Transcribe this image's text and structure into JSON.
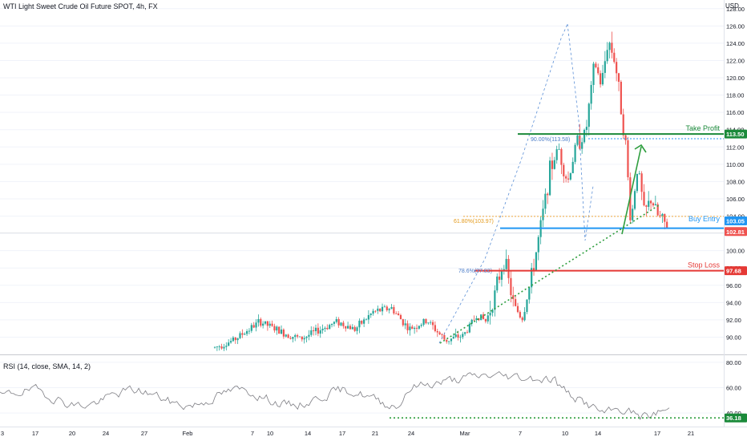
{
  "header": {
    "symbol_title": "WTI Light Sweet Crude Oil Future SPOT, 4h, FX",
    "currency": "USD"
  },
  "rsi_panel": {
    "title": "RSI (14, close, SMA, 14, 2)",
    "ticks": [
      "80.00",
      "60.00",
      "40.00"
    ],
    "level_badge": "36.18"
  },
  "time_axis": [
    "3",
    "17",
    "20",
    "24",
    "27",
    "Feb",
    "7",
    "10",
    "14",
    "17",
    "21",
    "24",
    "Mar",
    "7",
    "10",
    "14",
    "17",
    "21"
  ],
  "colors": {
    "up": "#26a69a",
    "down": "#ef5350",
    "take_profit": "#1b8a3a",
    "buy_entry": "#2196f3",
    "stop_loss": "#e53935",
    "support": "#2e9e3e",
    "fib": "#f2a93b"
  },
  "chart_data": {
    "type": "candlestick",
    "instrument": "WTI Light Sweet Crude Oil Future SPOT",
    "timeframe": "4h",
    "ylim": [
      88,
      129
    ],
    "y_ticks": [
      "128.00",
      "126.00",
      "124.00",
      "122.00",
      "120.00",
      "118.00",
      "116.00",
      "114.00",
      "112.00",
      "110.00",
      "108.00",
      "106.00",
      "104.00",
      "102.00",
      "100.00",
      "98.00",
      "96.00",
      "94.00",
      "92.00",
      "90.00"
    ],
    "price_path": [
      {
        "t": 0.0,
        "p": 88.8
      },
      {
        "t": 0.04,
        "p": 89.6
      },
      {
        "t": 0.1,
        "p": 91.8
      },
      {
        "t": 0.15,
        "p": 90.5
      },
      {
        "t": 0.19,
        "p": 89.8
      },
      {
        "t": 0.23,
        "p": 90.8
      },
      {
        "t": 0.27,
        "p": 91.8
      },
      {
        "t": 0.31,
        "p": 90.9
      },
      {
        "t": 0.35,
        "p": 92.9
      },
      {
        "t": 0.39,
        "p": 93.4
      },
      {
        "t": 0.43,
        "p": 90.9
      },
      {
        "t": 0.47,
        "p": 91.9
      },
      {
        "t": 0.51,
        "p": 89.6
      },
      {
        "t": 0.55,
        "p": 90.2
      },
      {
        "t": 0.58,
        "p": 92.6
      },
      {
        "t": 0.6,
        "p": 91.8
      },
      {
        "t": 0.62,
        "p": 95.1
      },
      {
        "t": 0.64,
        "p": 99.2
      },
      {
        "t": 0.66,
        "p": 93.8
      },
      {
        "t": 0.68,
        "p": 92.2
      },
      {
        "t": 0.7,
        "p": 96.8
      },
      {
        "t": 0.72,
        "p": 102.5
      },
      {
        "t": 0.74,
        "p": 109.0
      },
      {
        "t": 0.76,
        "p": 112.0
      },
      {
        "t": 0.78,
        "p": 107.8
      },
      {
        "t": 0.8,
        "p": 112.5
      },
      {
        "t": 0.82,
        "p": 113.5
      },
      {
        "t": 0.84,
        "p": 121.8
      },
      {
        "t": 0.855,
        "p": 119.0
      },
      {
        "t": 0.87,
        "p": 124.5
      },
      {
        "t": 0.885,
        "p": 122.0
      },
      {
        "t": 0.9,
        "p": 116.0
      },
      {
        "t": 0.91,
        "p": 111.5
      },
      {
        "t": 0.92,
        "p": 103.0
      },
      {
        "t": 0.935,
        "p": 110.0
      },
      {
        "t": 0.95,
        "p": 104.2
      },
      {
        "t": 0.965,
        "p": 106.0
      },
      {
        "t": 0.98,
        "p": 104.0
      },
      {
        "t": 1.0,
        "p": 102.81
      }
    ],
    "levels": [
      {
        "name": "Take Profit",
        "value": 113.5,
        "badge": "113.50"
      },
      {
        "name": "Buy Entry",
        "value": 103.05,
        "badge": "103.05"
      },
      {
        "name": "Stop Loss",
        "value": 97.68,
        "badge": "97.68"
      }
    ],
    "last_price": {
      "value": 102.81,
      "badge": "102.81"
    },
    "fib_annotations": [
      "90.00%(113.58)",
      "61.80%(103.97)",
      "78.6%(97.83)"
    ],
    "rsi": {
      "ylim": [
        30,
        85
      ],
      "support_level": 36.18
    }
  }
}
